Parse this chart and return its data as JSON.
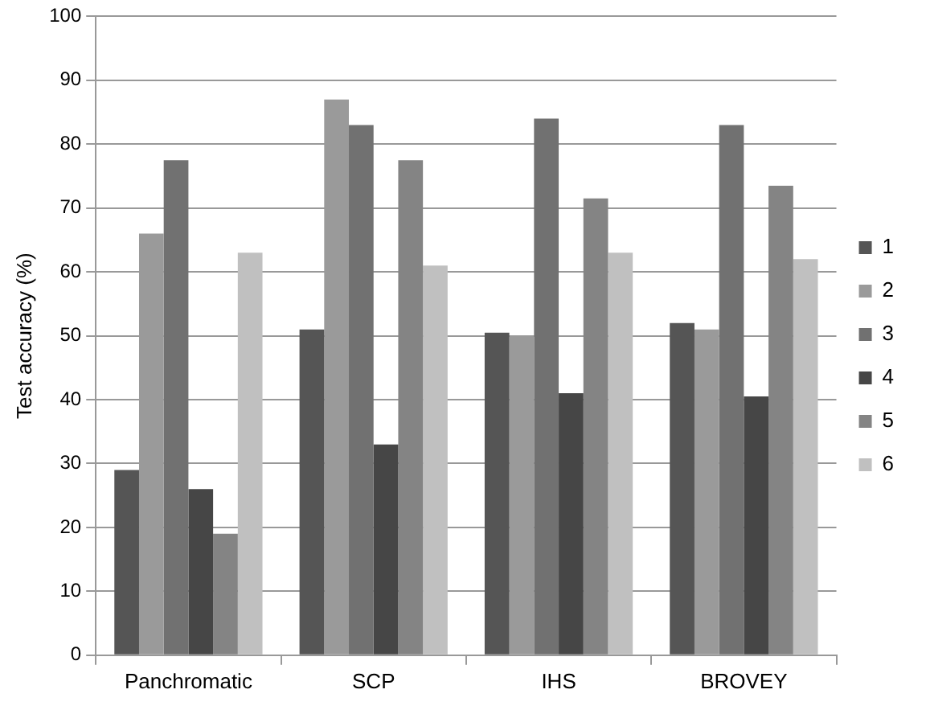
{
  "chart_data": {
    "type": "bar",
    "ylabel": "Test accuracy (%)",
    "categories": [
      "Panchromatic",
      "SCP",
      "IHS",
      "BROVEY"
    ],
    "series": [
      {
        "name": "1",
        "color": "#555555",
        "values": [
          29,
          51,
          50.5,
          52
        ]
      },
      {
        "name": "2",
        "color": "#9a9a9a",
        "values": [
          66,
          87,
          50,
          51
        ]
      },
      {
        "name": "3",
        "color": "#717171",
        "values": [
          77.5,
          83,
          84,
          83
        ]
      },
      {
        "name": "4",
        "color": "#464646",
        "values": [
          26,
          33,
          41,
          40.5
        ]
      },
      {
        "name": "5",
        "color": "#848484",
        "values": [
          19,
          77.5,
          71.5,
          73.5
        ]
      },
      {
        "name": "6",
        "color": "#c0c0c0",
        "values": [
          63,
          61,
          63,
          62
        ]
      }
    ],
    "ylim": [
      0,
      100
    ],
    "yticks": [
      0,
      10,
      20,
      30,
      40,
      50,
      60,
      70,
      80,
      90,
      100
    ],
    "grid": "y",
    "legend": "right"
  }
}
